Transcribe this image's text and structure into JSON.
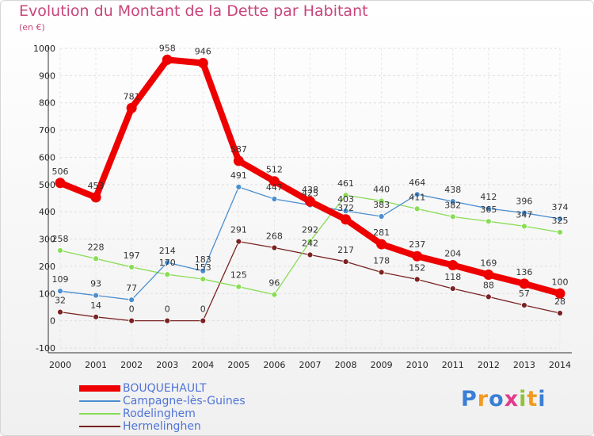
{
  "chart_data": {
    "type": "line",
    "title": "Evolution du Montant de la Dette par Habitant",
    "subtitle": "(en €)",
    "xlabel": "",
    "ylabel": "",
    "ylim": [
      -100,
      1000
    ],
    "y_ticks": [
      -100,
      0,
      100,
      200,
      300,
      400,
      500,
      600,
      700,
      800,
      900,
      1000
    ],
    "grid": true,
    "categories": [
      "2000",
      "2001",
      "2002",
      "2003",
      "2004",
      "2005",
      "2006",
      "2007",
      "2008",
      "2009",
      "2010",
      "2011",
      "2012",
      "2013",
      "2014"
    ],
    "series": [
      {
        "name": "BOUQUEHAULT",
        "color": "#ee0000",
        "values": [
          506,
          453,
          781,
          958,
          946,
          587,
          512,
          438,
          372,
          281,
          237,
          204,
          169,
          136,
          100
        ]
      },
      {
        "name": "Campagne-lès-Guines",
        "color": "#4a8fd0",
        "values": [
          109,
          93,
          77,
          214,
          183,
          491,
          447,
          425,
          403,
          383,
          464,
          438,
          412,
          396,
          374
        ]
      },
      {
        "name": "Rodelinghem",
        "color": "#88dd55",
        "values": [
          258,
          228,
          197,
          170,
          153,
          125,
          96,
          292,
          461,
          440,
          411,
          382,
          365,
          347,
          325
        ]
      },
      {
        "name": "Hermelinghen",
        "color": "#7a2222",
        "values": [
          32,
          14,
          0,
          0,
          0,
          291,
          268,
          242,
          217,
          178,
          152,
          118,
          88,
          57,
          28
        ]
      }
    ],
    "legend_position": "bottom-left"
  },
  "logo": {
    "text": "Proxiti"
  }
}
